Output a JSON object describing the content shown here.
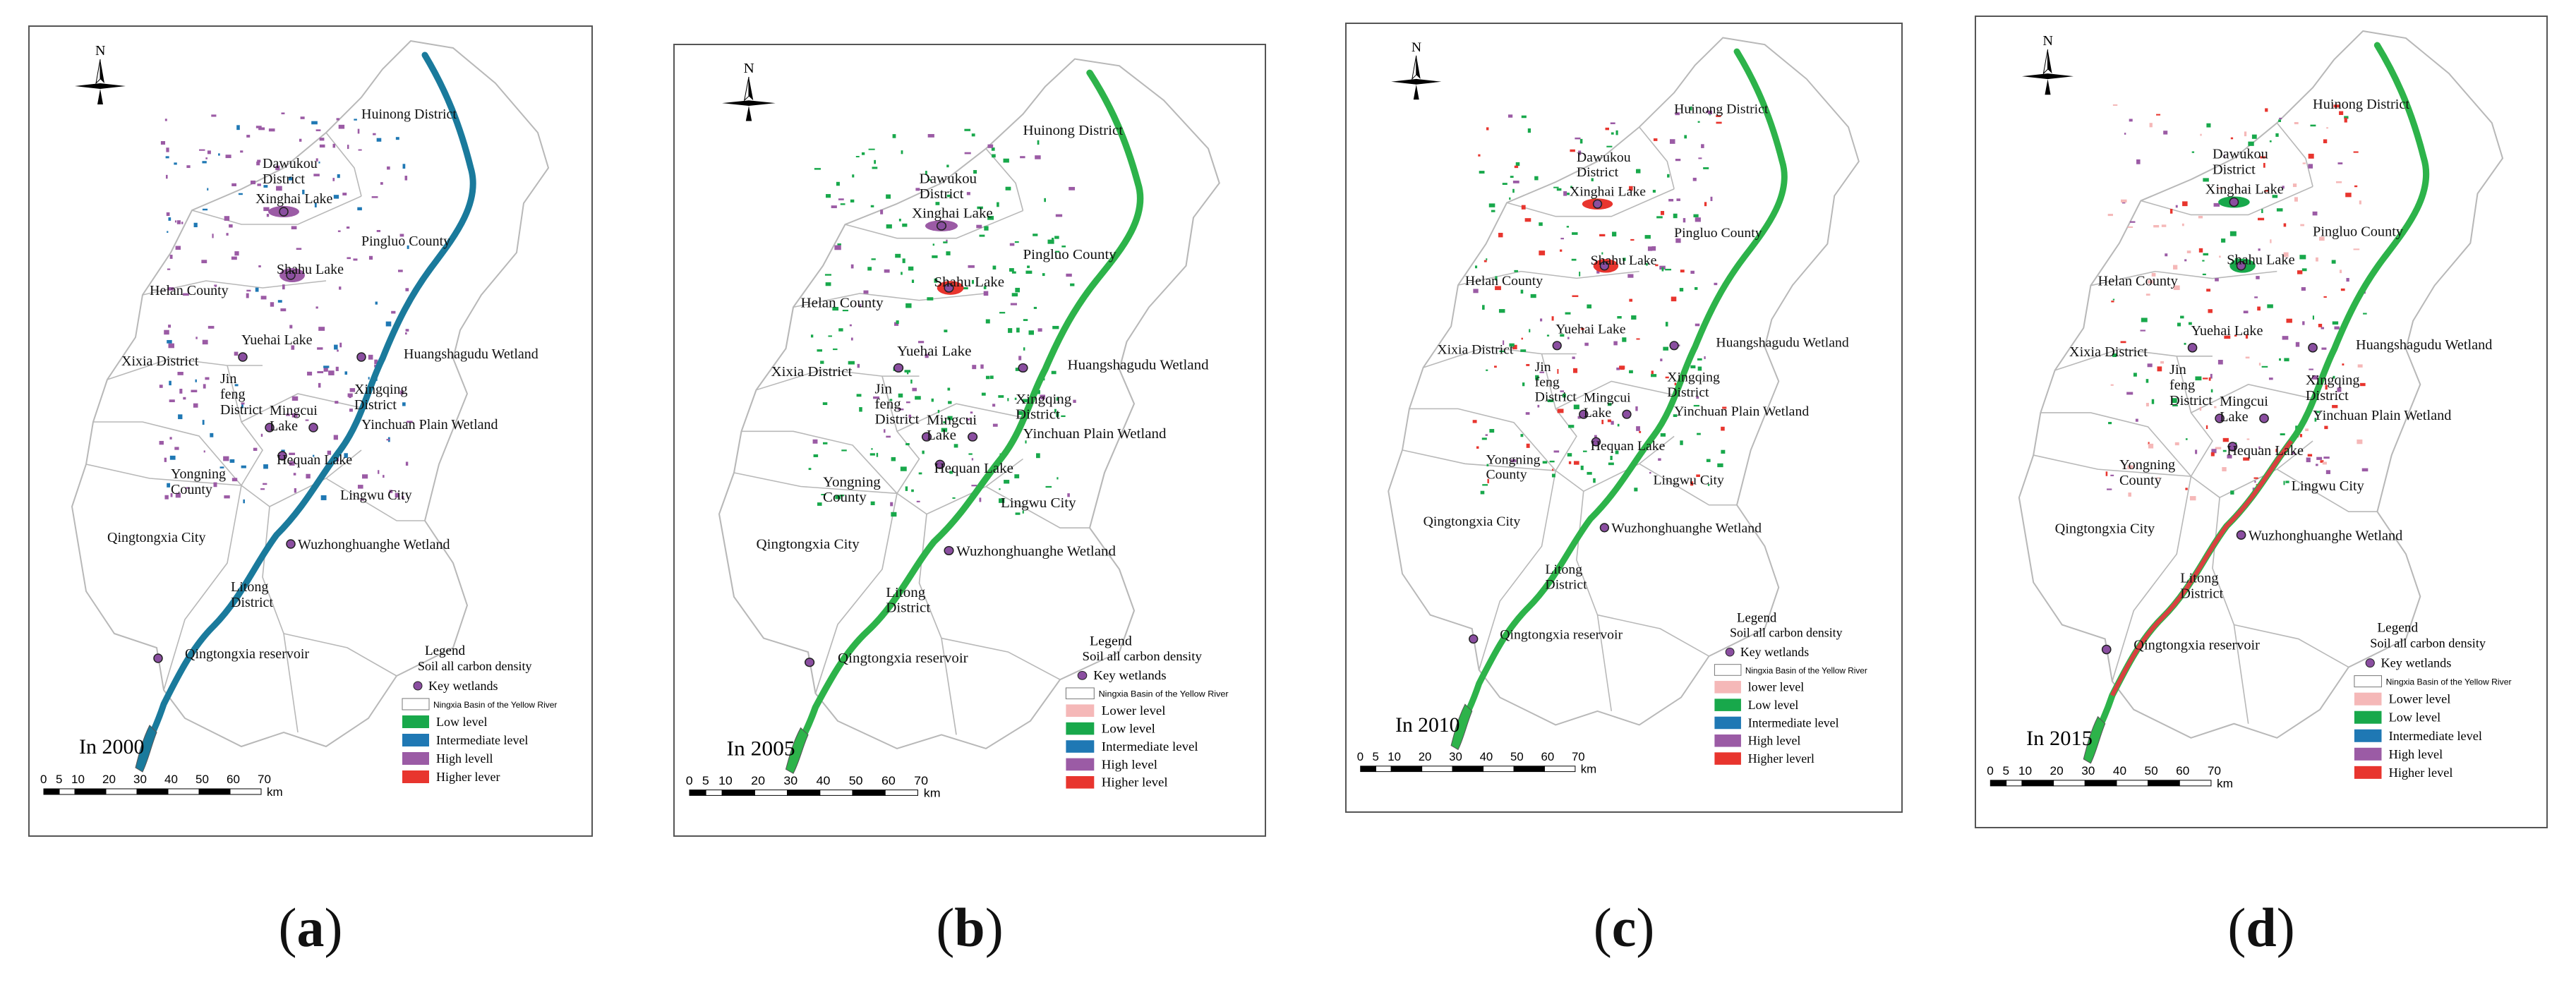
{
  "captions": [
    {
      "open": "(",
      "letter": "a",
      "close": ")"
    },
    {
      "open": "(",
      "letter": "b",
      "close": ")"
    },
    {
      "open": "(",
      "letter": "c",
      "close": ")"
    },
    {
      "open": "(",
      "letter": "d",
      "close": ")"
    }
  ],
  "colors": {
    "river_a": "#1a7a9c",
    "river_green": "#2db34a",
    "river_red": "#d94040",
    "lower": "#f5b8b8",
    "low": "#18a84b",
    "intermediate": "#1f78b4",
    "high": "#9b5ba5",
    "higher": "#e8352e",
    "boundary": "#b8b8b8",
    "wetland_dot": "#8a4ea0"
  },
  "panels": [
    {
      "year_label": "In  2000",
      "north": "N",
      "places": {
        "huinong": "Huinong District",
        "dawukou": "Dawukou District",
        "xinghai": "Xinghai Lake",
        "pingluo": "Pingluo County",
        "shahu": "Shahu Lake",
        "helan": "Helan County",
        "yuehai": "Yuehai Lake",
        "huangshagudu": "Huangshagudu Wetland",
        "xixia": "Xixia District",
        "jinfeng": "Jin feng District",
        "xingqing": "Xingqing District",
        "mingcui": "Mingcui Lake",
        "yinchuan": "Yinchuan Plain Wetland",
        "hequan": "Hequan Lake",
        "yongning": "Yongning County",
        "lingwu": "Lingwu City",
        "qingtongxia": "Qingtongxia City",
        "wuzhong": "Wuzhonghuanghe Wetland",
        "litong": "Litong District",
        "reservoir": "Qingtongxia reservoir"
      },
      "legend": {
        "title": "Legend",
        "subtitle": "Soil all carbon density",
        "wetlands": "Key wetlands",
        "basin": "Ningxia Basin of the Yellow River",
        "items": [
          {
            "label": "Low level",
            "color": "#18a84b"
          },
          {
            "label": "Intermediate level",
            "color": "#1f78b4"
          },
          {
            "label": "High levell",
            "color": "#9b5ba5"
          },
          {
            "label": "Higher lever",
            "color": "#e8352e"
          }
        ]
      },
      "scale": {
        "ticks": [
          "0",
          "5",
          "10",
          "20",
          "30",
          "40",
          "50",
          "60",
          "70"
        ],
        "unit": "km"
      }
    },
    {
      "year_label": "In 2005",
      "north": "N",
      "places": {
        "huinong": "Huinong District",
        "dawukou": "Dawukou District",
        "xinghai": "Xinghai Lake",
        "pingluo": "Pingluo County",
        "shahu": "Shahu Lake",
        "helan": "Helan County",
        "yuehai": "Yuehai Lake",
        "huangshagudu": "Huangshagudu Wetland",
        "xixia": "Xixia District",
        "jinfeng": "Jin feng District",
        "xingqing": "Xingqing District",
        "mingcui": "Mingcui Lake",
        "yinchuan": "Yinchuan Plain Wetland",
        "hequan": "Hequan Lake",
        "yongning": "Yongning County",
        "lingwu": "Lingwu City",
        "qingtongxia": "Qingtongxia City",
        "wuzhong": "Wuzhonghuanghe Wetland",
        "litong": "Litong District",
        "reservoir": "Qingtongxia reservoir"
      },
      "legend": {
        "title": "Legend",
        "subtitle": "Soil all carbon density",
        "wetlands": "Key wetlands",
        "basin": "Ningxia Basin of the Yellow River",
        "items": [
          {
            "label": "Lower level",
            "color": "#f5b8b8"
          },
          {
            "label": "Low level",
            "color": "#18a84b"
          },
          {
            "label": "Intermediate level",
            "color": "#1f78b4"
          },
          {
            "label": "High level",
            "color": "#9b5ba5"
          },
          {
            "label": "Higher level",
            "color": "#e8352e"
          }
        ]
      },
      "scale": {
        "ticks": [
          "0",
          "5",
          "10",
          "20",
          "30",
          "40",
          "50",
          "60",
          "70"
        ],
        "unit": "km"
      }
    },
    {
      "year_label": "In  2010",
      "north": "N",
      "places": {
        "huinong": "Huinong District",
        "dawukou": "Dawukou District",
        "xinghai": "Xinghai Lake",
        "pingluo": "Pingluo County",
        "shahu": "Shahu Lake",
        "helan": "Helan County",
        "yuehai": "Yuehai Lake",
        "huangshagudu": "Huangshagudu Wetland",
        "xixia": "Xixia  District",
        "jinfeng": "Jin feng District",
        "xingqing": "Xingqing District",
        "mingcui": "Mingcui Lake",
        "yinchuan": "Yinchuan Plain Wetland",
        "hequan": "Hequan Lake",
        "yongning": "Yongning County",
        "lingwu": "Lingwu City",
        "qingtongxia": "Qingtongxia City",
        "wuzhong": "Wuzhonghuanghe Wetland",
        "litong": "Litong District",
        "reservoir": "Qingtongxia reservoir"
      },
      "legend": {
        "title": "Legend",
        "subtitle": "Soil all carbon density",
        "wetlands": "Key wetlands",
        "basin": "Ningxia Basin of the Yellow River",
        "items": [
          {
            "label": "lower level",
            "color": "#f5b8b8"
          },
          {
            "label": "Low level",
            "color": "#18a84b"
          },
          {
            "label": "Intermediate level",
            "color": "#1f78b4"
          },
          {
            "label": "High level",
            "color": "#9b5ba5"
          },
          {
            "label": "Higher leverl",
            "color": "#e8352e"
          }
        ]
      },
      "scale": {
        "ticks": [
          "0",
          "5",
          "10",
          "20",
          "30",
          "40",
          "50",
          "60",
          "70"
        ],
        "unit": "km"
      }
    },
    {
      "year_label": "In 2015",
      "north": "N",
      "places": {
        "huinong": "Huinong District",
        "dawukou": "Dawukou District",
        "xinghai": "Xinghai Lake",
        "pingluo": "Pingluo County",
        "shahu": "Shahu Lake",
        "helan": "Helan County",
        "yuehai": "Yuehai Lake",
        "huangshagudu": "Huangshagudu Wetland",
        "xixia": "Xixia District",
        "jinfeng": "Jin feng District",
        "xingqing": "Xingqing District",
        "mingcui": "Mingcui Lake",
        "yinchuan": "Yinchuan Plain Wetland",
        "hequan": "Hequan Lake",
        "yongning": "Yongning County",
        "lingwu": "Lingwu City",
        "qingtongxia": "Qingtongxia City",
        "wuzhong": "Wuzhonghuanghe Wetland",
        "litong": "Litong District",
        "reservoir": "Qingtongxia reservoir"
      },
      "legend": {
        "title": "Legend",
        "subtitle": "Soil all carbon density",
        "wetlands": "Key wetlands",
        "basin": "Ningxia Basin of the Yellow River",
        "items": [
          {
            "label": "Lower level",
            "color": "#f5b8b8"
          },
          {
            "label": "Low level",
            "color": "#18a84b"
          },
          {
            "label": "Intermediate level",
            "color": "#1f78b4"
          },
          {
            "label": "High level",
            "color": "#9b5ba5"
          },
          {
            "label": "Higher level",
            "color": "#e8352e"
          }
        ]
      },
      "scale": {
        "ticks": [
          "0",
          "5",
          "10",
          "20",
          "30",
          "40",
          "50",
          "60",
          "70"
        ],
        "unit": "km"
      }
    }
  ]
}
